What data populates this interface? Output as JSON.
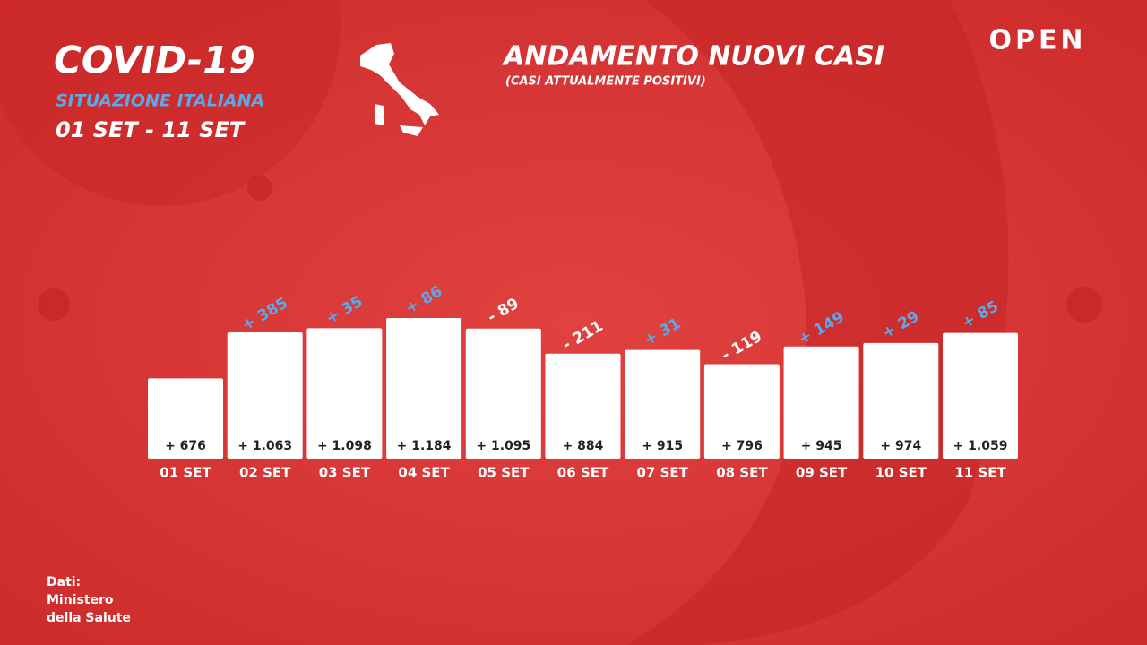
{
  "header": {
    "title": "COVID-19",
    "subtitle": "SITUAZIONE ITALIANA",
    "period": "01 SET - 11 SET"
  },
  "logo": "OPEN",
  "source": [
    "Dati:",
    "Ministero",
    "della Salute"
  ],
  "chart_data": {
    "type": "bar",
    "title": "ANDAMENTO NUOVI CASI",
    "subtitle": "(CASI ATTUALMENTE POSITIVI)",
    "categories": [
      "01 SET",
      "02 SET",
      "03 SET",
      "04 SET",
      "05 SET",
      "06 SET",
      "07 SET",
      "08 SET",
      "09 SET",
      "10 SET",
      "11 SET"
    ],
    "values": [
      676,
      1063,
      1098,
      1184,
      1095,
      884,
      915,
      796,
      945,
      974,
      1059
    ],
    "value_labels": [
      "+ 676",
      "+ 1.063",
      "+ 1.098",
      "+ 1.184",
      "+ 1.095",
      "+ 884",
      "+ 915",
      "+ 796",
      "+ 945",
      "+ 974",
      "+ 1.059"
    ],
    "changes": [
      null,
      385,
      35,
      86,
      -89,
      -211,
      31,
      -119,
      149,
      29,
      85
    ],
    "change_labels": [
      null,
      "+ 385",
      "+ 35",
      "+ 86",
      "- 89",
      "- 211",
      "+ 31",
      "- 119",
      "+ 149",
      "+ 29",
      "+ 85"
    ],
    "color": "#ffffff",
    "positive_color": "#5aa9ea",
    "negative_color": "#ffffff"
  }
}
